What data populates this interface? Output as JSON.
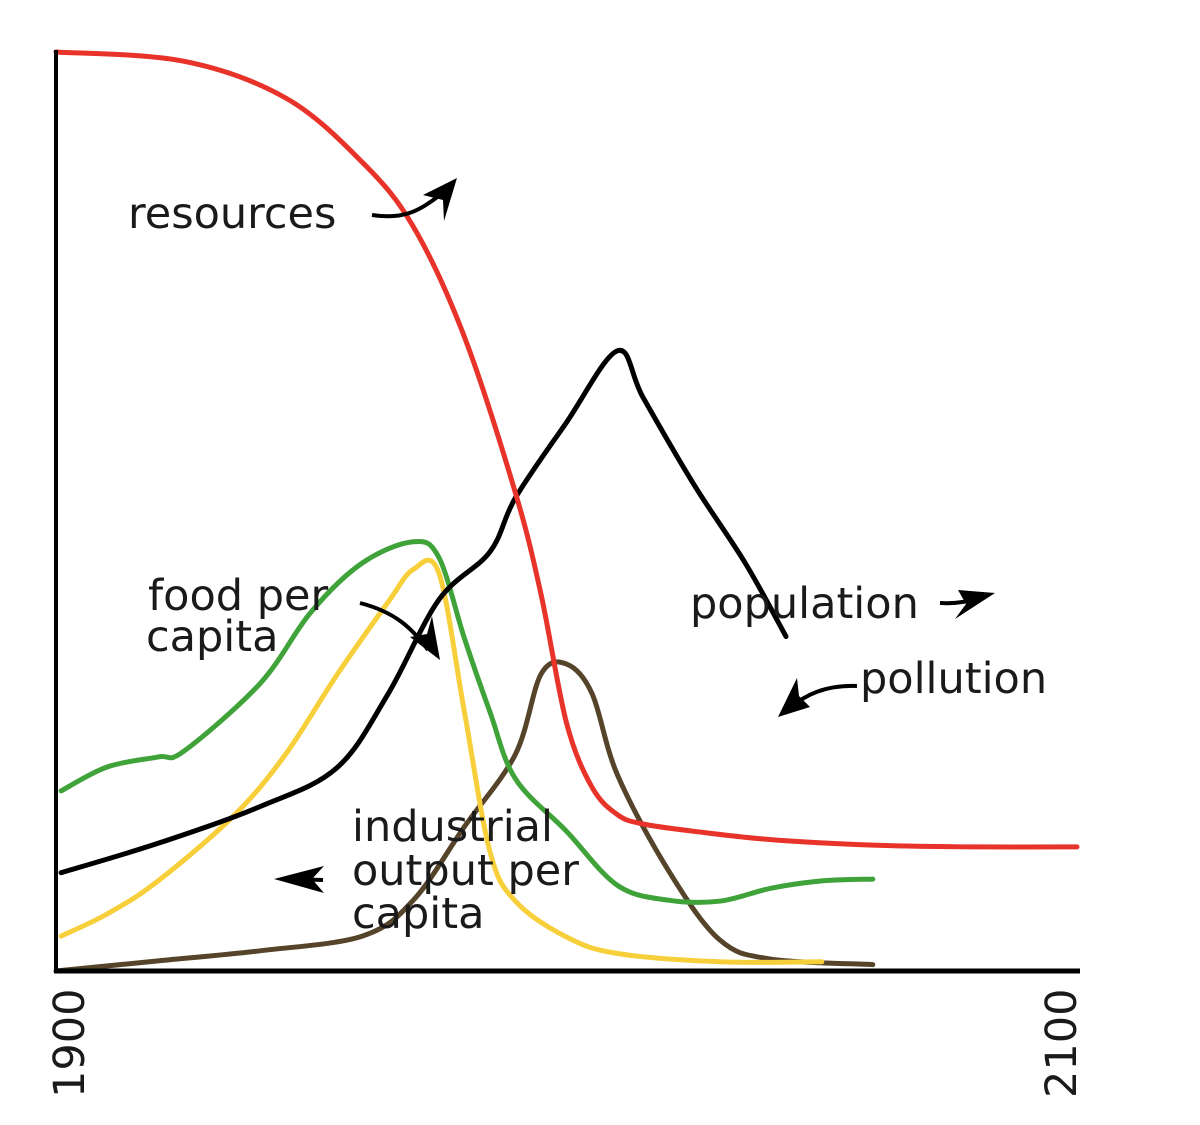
{
  "chart_data": {
    "type": "line",
    "xlim": [
      1900,
      2100
    ],
    "ylim": [
      0,
      100
    ],
    "x_ticks": [
      "1900",
      "2100"
    ],
    "grid": false,
    "legend": "inline labels with arrows",
    "series": [
      {
        "name": "resources",
        "color": "#e8332a",
        "points": [
          [
            1900,
            100
          ],
          [
            1925,
            99
          ],
          [
            1945,
            95
          ],
          [
            1960,
            88
          ],
          [
            1970,
            81
          ],
          [
            1980,
            69
          ],
          [
            1990,
            52
          ],
          [
            1995,
            41
          ],
          [
            2000,
            27
          ],
          [
            2005,
            20
          ],
          [
            2010,
            17
          ],
          [
            2015,
            16
          ],
          [
            2025,
            15.2
          ],
          [
            2040,
            14.3
          ],
          [
            2060,
            13.7
          ],
          [
            2080,
            13.5
          ],
          [
            2100,
            13.5
          ]
        ]
      },
      {
        "name": "population",
        "color": "#000000",
        "points": [
          [
            1901,
            10.7
          ],
          [
            1920,
            13.9
          ],
          [
            1940,
            17.9
          ],
          [
            1955,
            22.1
          ],
          [
            1965,
            30.1
          ],
          [
            1975,
            40.4
          ],
          [
            1985,
            45.6
          ],
          [
            1990,
            51.5
          ],
          [
            2000,
            59.7
          ],
          [
            2010,
            67.5
          ],
          [
            2015,
            62.4
          ],
          [
            2025,
            52.9
          ],
          [
            2035,
            44.4
          ],
          [
            2043,
            36.4
          ]
        ]
      },
      {
        "name": "food per capita",
        "color": "#3fa33a",
        "points": [
          [
            1901,
            19.6
          ],
          [
            1910,
            22.2
          ],
          [
            1920,
            23.3
          ],
          [
            1925,
            23.9
          ],
          [
            1940,
            31.3
          ],
          [
            1950,
            39.1
          ],
          [
            1960,
            44.4
          ],
          [
            1970,
            46.7
          ],
          [
            1975,
            45.0
          ],
          [
            1980,
            36.2
          ],
          [
            1985,
            28.2
          ],
          [
            1990,
            20.9
          ],
          [
            2000,
            15.2
          ],
          [
            2010,
            9.3
          ],
          [
            2020,
            7.7
          ],
          [
            2030,
            7.6
          ],
          [
            2040,
            9.0
          ],
          [
            2050,
            9.8
          ],
          [
            2060,
            10.0
          ]
        ]
      },
      {
        "name": "industrial output per capita",
        "color": "#f7cf3a",
        "points": [
          [
            1901,
            3.8
          ],
          [
            1910,
            6.2
          ],
          [
            1920,
            9.8
          ],
          [
            1935,
            17.0
          ],
          [
            1945,
            23.6
          ],
          [
            1955,
            32.2
          ],
          [
            1965,
            40.1
          ],
          [
            1970,
            43.7
          ],
          [
            1975,
            43.3
          ],
          [
            1980,
            28.2
          ],
          [
            1985,
            13.0
          ],
          [
            1990,
            7.6
          ],
          [
            2000,
            3.7
          ],
          [
            2010,
            1.9
          ],
          [
            2030,
            1.0
          ],
          [
            2050,
            1.0
          ]
        ]
      },
      {
        "name": "pollution",
        "color": "#55432a",
        "points": [
          [
            1900,
            0
          ],
          [
            1920,
            1.1
          ],
          [
            1940,
            2.2
          ],
          [
            1960,
            3.8
          ],
          [
            1970,
            7.7
          ],
          [
            1980,
            15.7
          ],
          [
            1990,
            23.6
          ],
          [
            1995,
            32.3
          ],
          [
            2000,
            33.4
          ],
          [
            2005,
            30.2
          ],
          [
            2010,
            21.3
          ],
          [
            2020,
            10.9
          ],
          [
            2030,
            3.4
          ],
          [
            2040,
            1.3
          ],
          [
            2060,
            0.7
          ]
        ]
      }
    ],
    "annotations": [
      {
        "lines": [
          "resources"
        ],
        "series": "resources"
      },
      {
        "lines": [
          "food per",
          "capita"
        ],
        "series": "food per capita"
      },
      {
        "lines": [
          "population"
        ],
        "series": "population"
      },
      {
        "lines": [
          "pollution"
        ],
        "series": "pollution"
      },
      {
        "lines": [
          "industrial",
          "output per",
          "capita"
        ],
        "series": "industrial output per capita"
      }
    ]
  }
}
